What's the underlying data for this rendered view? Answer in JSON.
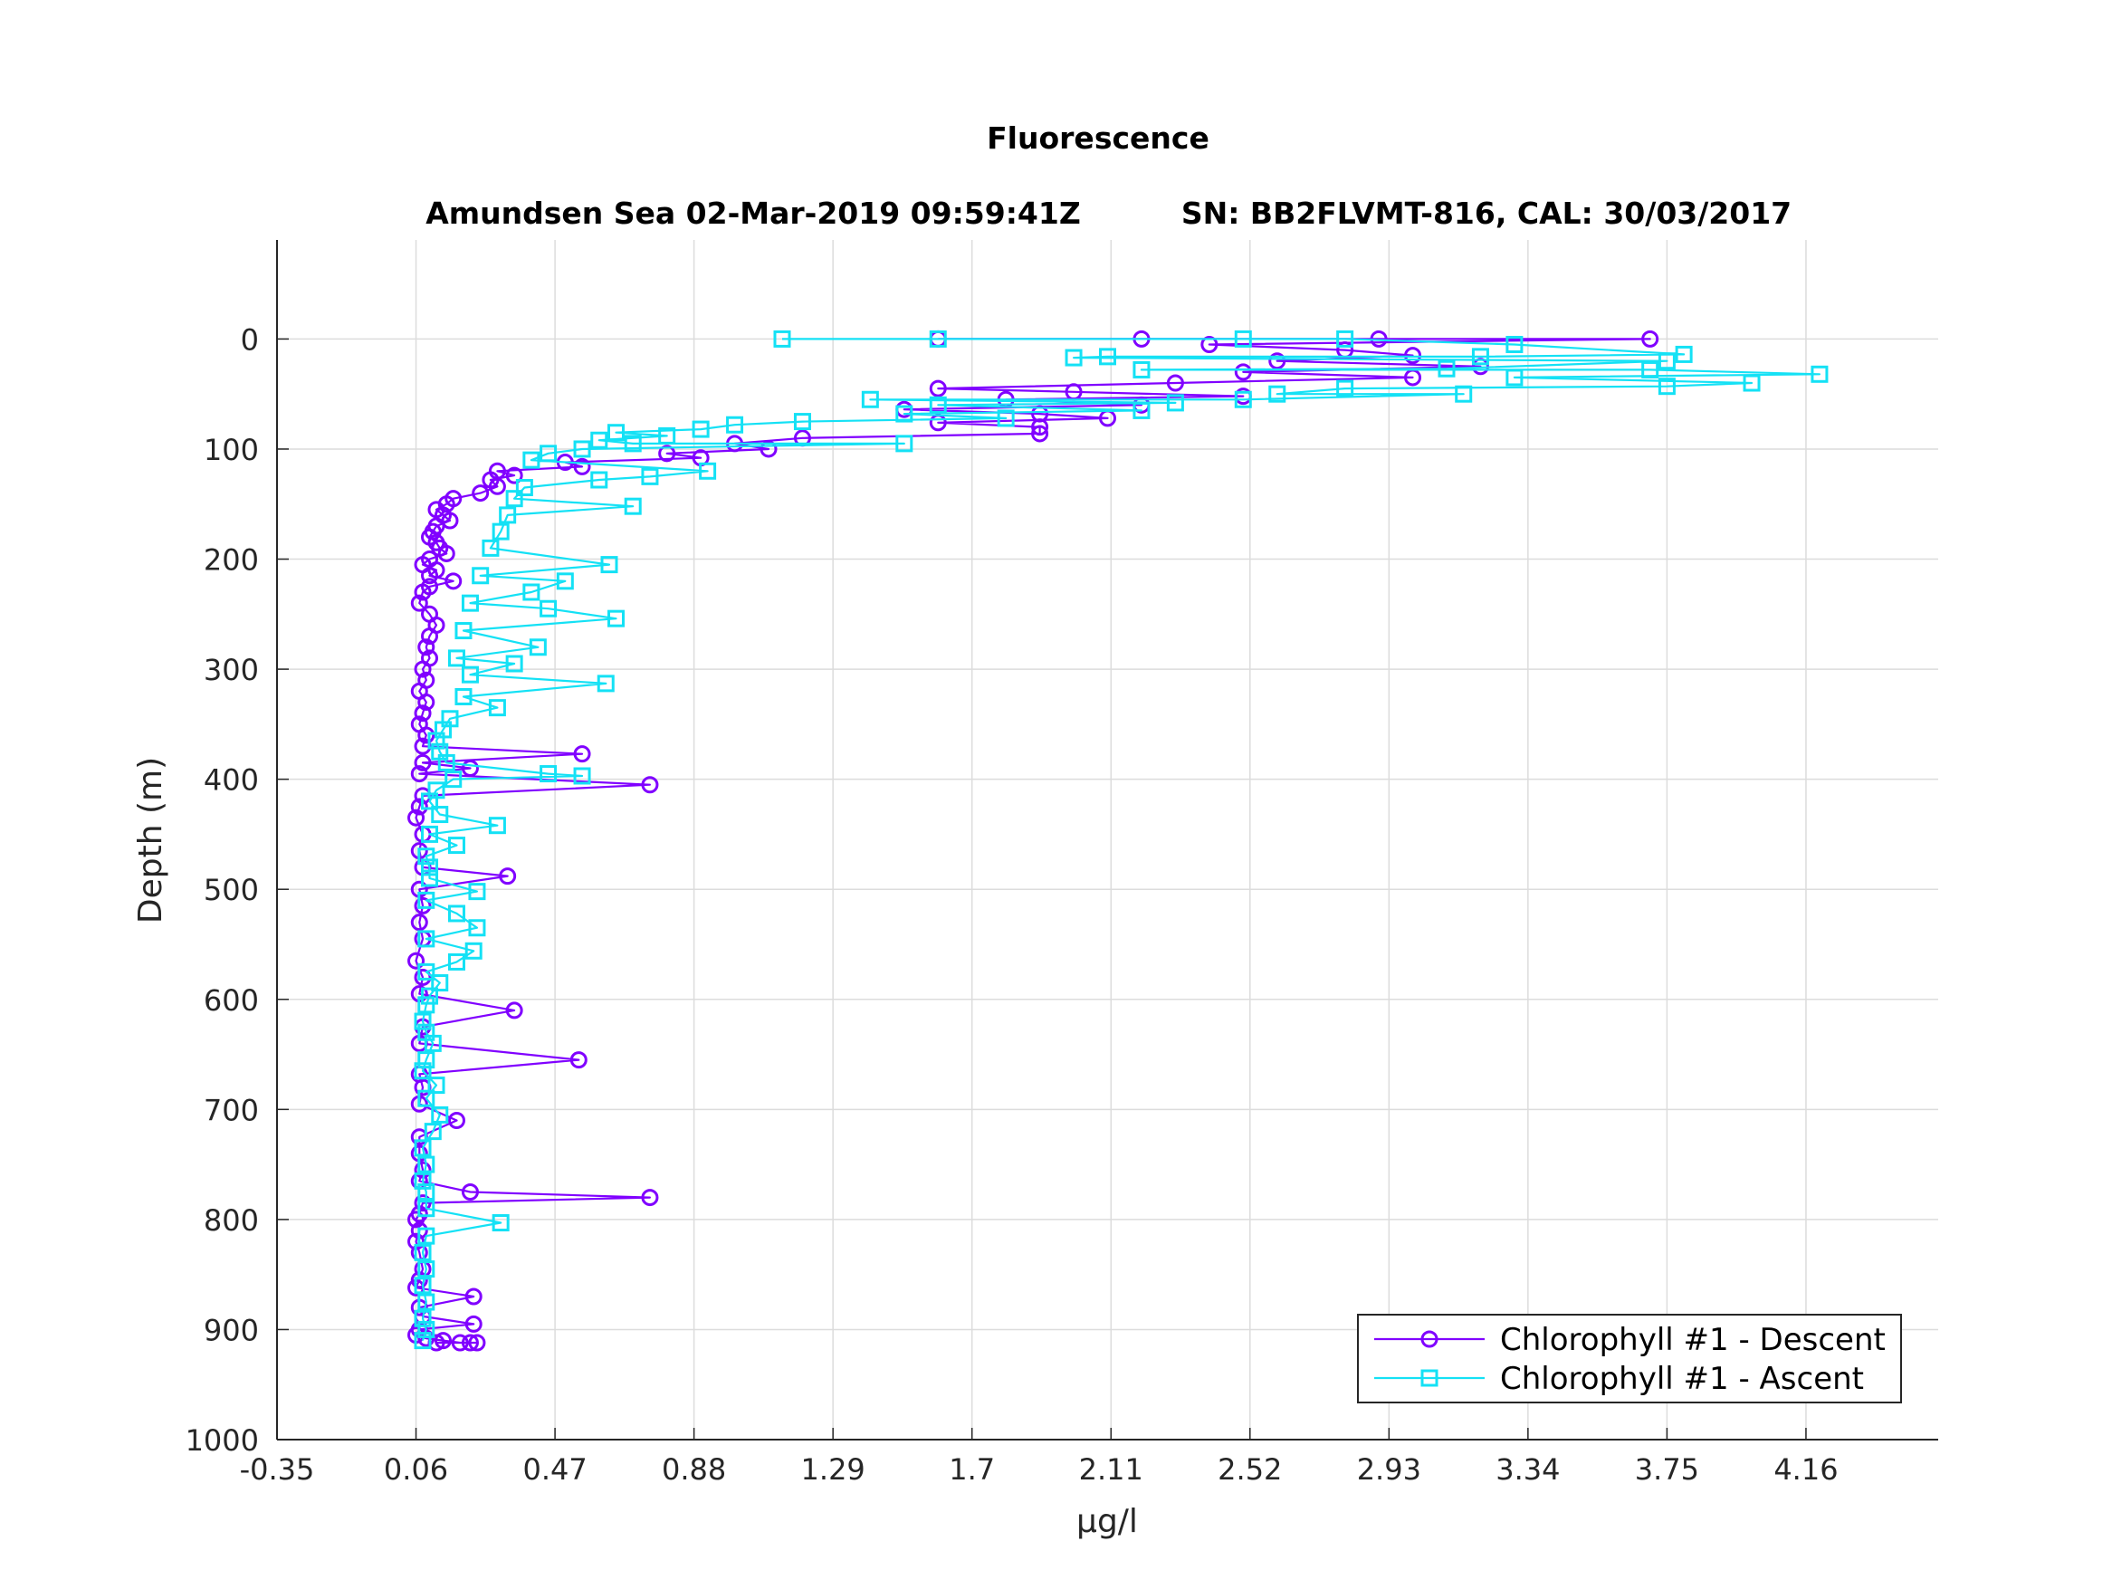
{
  "figure": {
    "title": "Fluorescence",
    "subtitle_left": "Amundsen Sea 02-Mar-2019 09:59:41Z",
    "subtitle_right": "SN: BB2FLVMT-816, CAL: 30/03/2017"
  },
  "chart_data": {
    "type": "line",
    "xlabel_prefix": "μ",
    "xlabel_rest": "g/l",
    "ylabel": "Depth (m)",
    "xlim": [
      -0.35,
      4.55
    ],
    "ylim": [
      1000,
      -90
    ],
    "y_reversed": true,
    "grid": true,
    "legend_position": "bottom-right",
    "x_ticks": [
      "-0.35",
      "0.06",
      "0.47",
      "0.88",
      "1.29",
      "1.7",
      "2.11",
      "2.52",
      "2.93",
      "3.34",
      "3.75",
      "4.16"
    ],
    "y_ticks": [
      "0",
      "100",
      "200",
      "300",
      "400",
      "500",
      "600",
      "700",
      "800",
      "900",
      "1000"
    ],
    "series": [
      {
        "name": "Chlorophyll #1 - Descent",
        "color": "#8000ff",
        "marker": "circle",
        "points": [
          [
            1.6,
            0
          ],
          [
            2.2,
            0
          ],
          [
            2.9,
            0
          ],
          [
            3.7,
            0
          ],
          [
            2.4,
            5
          ],
          [
            2.8,
            10
          ],
          [
            3.0,
            15
          ],
          [
            2.6,
            20
          ],
          [
            3.2,
            25
          ],
          [
            2.5,
            30
          ],
          [
            3.0,
            35
          ],
          [
            2.3,
            40
          ],
          [
            1.6,
            45
          ],
          [
            2.0,
            48
          ],
          [
            2.5,
            52
          ],
          [
            1.8,
            55
          ],
          [
            2.2,
            60
          ],
          [
            1.5,
            64
          ],
          [
            1.9,
            68
          ],
          [
            2.1,
            72
          ],
          [
            1.6,
            76
          ],
          [
            1.9,
            80
          ],
          [
            1.9,
            86
          ],
          [
            1.2,
            90
          ],
          [
            1.0,
            95
          ],
          [
            1.1,
            100
          ],
          [
            0.8,
            104
          ],
          [
            0.9,
            108
          ],
          [
            0.5,
            112
          ],
          [
            0.55,
            116
          ],
          [
            0.3,
            120
          ],
          [
            0.35,
            124
          ],
          [
            0.28,
            128
          ],
          [
            0.3,
            134
          ],
          [
            0.25,
            140
          ],
          [
            0.17,
            145
          ],
          [
            0.15,
            150
          ],
          [
            0.12,
            155
          ],
          [
            0.14,
            160
          ],
          [
            0.16,
            165
          ],
          [
            0.12,
            170
          ],
          [
            0.11,
            175
          ],
          [
            0.1,
            180
          ],
          [
            0.12,
            185
          ],
          [
            0.13,
            190
          ],
          [
            0.15,
            195
          ],
          [
            0.1,
            200
          ],
          [
            0.08,
            205
          ],
          [
            0.12,
            210
          ],
          [
            0.1,
            215
          ],
          [
            0.17,
            220
          ],
          [
            0.1,
            225
          ],
          [
            0.08,
            230
          ],
          [
            0.07,
            240
          ],
          [
            0.1,
            250
          ],
          [
            0.12,
            260
          ],
          [
            0.1,
            270
          ],
          [
            0.09,
            280
          ],
          [
            0.1,
            290
          ],
          [
            0.08,
            300
          ],
          [
            0.09,
            310
          ],
          [
            0.07,
            320
          ],
          [
            0.09,
            330
          ],
          [
            0.08,
            340
          ],
          [
            0.07,
            350
          ],
          [
            0.09,
            360
          ],
          [
            0.08,
            370
          ],
          [
            0.55,
            377
          ],
          [
            0.08,
            385
          ],
          [
            0.22,
            390
          ],
          [
            0.07,
            395
          ],
          [
            0.75,
            405
          ],
          [
            0.08,
            415
          ],
          [
            0.07,
            425
          ],
          [
            0.06,
            435
          ],
          [
            0.08,
            450
          ],
          [
            0.07,
            465
          ],
          [
            0.08,
            480
          ],
          [
            0.33,
            488
          ],
          [
            0.07,
            500
          ],
          [
            0.08,
            515
          ],
          [
            0.07,
            530
          ],
          [
            0.08,
            545
          ],
          [
            0.06,
            565
          ],
          [
            0.08,
            580
          ],
          [
            0.07,
            595
          ],
          [
            0.35,
            610
          ],
          [
            0.08,
            625
          ],
          [
            0.07,
            640
          ],
          [
            0.54,
            655
          ],
          [
            0.07,
            668
          ],
          [
            0.08,
            680
          ],
          [
            0.07,
            695
          ],
          [
            0.18,
            710
          ],
          [
            0.07,
            725
          ],
          [
            0.07,
            740
          ],
          [
            0.08,
            755
          ],
          [
            0.07,
            765
          ],
          [
            0.22,
            775
          ],
          [
            0.75,
            780
          ],
          [
            0.08,
            785
          ],
          [
            0.07,
            795
          ],
          [
            0.06,
            800
          ],
          [
            0.07,
            810
          ],
          [
            0.06,
            820
          ],
          [
            0.07,
            830
          ],
          [
            0.08,
            845
          ],
          [
            0.07,
            855
          ],
          [
            0.06,
            862
          ],
          [
            0.23,
            870
          ],
          [
            0.07,
            880
          ],
          [
            0.08,
            888
          ],
          [
            0.23,
            895
          ],
          [
            0.07,
            900
          ],
          [
            0.06,
            905
          ],
          [
            0.09,
            908
          ],
          [
            0.14,
            910
          ],
          [
            0.19,
            912
          ],
          [
            0.22,
            912
          ],
          [
            0.24,
            912
          ],
          [
            0.12,
            912
          ]
        ]
      },
      {
        "name": "Chlorophyll #1 - Ascent",
        "color": "#14e1f5",
        "marker": "square",
        "points": [
          [
            1.14,
            0
          ],
          [
            1.6,
            0
          ],
          [
            2.5,
            0
          ],
          [
            2.8,
            0
          ],
          [
            3.3,
            5
          ],
          [
            2.0,
            17
          ],
          [
            3.2,
            16
          ],
          [
            3.8,
            14
          ],
          [
            2.1,
            16
          ],
          [
            3.75,
            20
          ],
          [
            2.2,
            28
          ],
          [
            3.1,
            27
          ],
          [
            3.7,
            28
          ],
          [
            4.2,
            32
          ],
          [
            3.3,
            35
          ],
          [
            4.0,
            40
          ],
          [
            3.75,
            43
          ],
          [
            2.8,
            45
          ],
          [
            2.6,
            50
          ],
          [
            3.15,
            50
          ],
          [
            2.5,
            55
          ],
          [
            2.3,
            58
          ],
          [
            1.4,
            55
          ],
          [
            1.6,
            60
          ],
          [
            2.2,
            65
          ],
          [
            1.5,
            68
          ],
          [
            1.8,
            72
          ],
          [
            1.2,
            75
          ],
          [
            1.0,
            78
          ],
          [
            0.9,
            82
          ],
          [
            0.65,
            85
          ],
          [
            0.8,
            88
          ],
          [
            0.6,
            92
          ],
          [
            0.7,
            95
          ],
          [
            1.5,
            95
          ],
          [
            0.55,
            100
          ],
          [
            0.45,
            104
          ],
          [
            0.92,
            120
          ],
          [
            0.75,
            125
          ],
          [
            0.4,
            110
          ],
          [
            0.6,
            128
          ],
          [
            0.38,
            135
          ],
          [
            0.7,
            152
          ],
          [
            0.35,
            145
          ],
          [
            0.33,
            160
          ],
          [
            0.31,
            175
          ],
          [
            0.28,
            190
          ],
          [
            0.63,
            205
          ],
          [
            0.25,
            215
          ],
          [
            0.5,
            220
          ],
          [
            0.4,
            230
          ],
          [
            0.22,
            240
          ],
          [
            0.45,
            245
          ],
          [
            0.65,
            254
          ],
          [
            0.2,
            265
          ],
          [
            0.42,
            280
          ],
          [
            0.18,
            290
          ],
          [
            0.35,
            295
          ],
          [
            0.22,
            305
          ],
          [
            0.62,
            313
          ],
          [
            0.2,
            325
          ],
          [
            0.3,
            335
          ],
          [
            0.16,
            345
          ],
          [
            0.14,
            355
          ],
          [
            0.12,
            365
          ],
          [
            0.13,
            375
          ],
          [
            0.15,
            385
          ],
          [
            0.45,
            395
          ],
          [
            0.55,
            397
          ],
          [
            0.17,
            400
          ],
          [
            0.12,
            410
          ],
          [
            0.1,
            420
          ],
          [
            0.13,
            432
          ],
          [
            0.3,
            442
          ],
          [
            0.1,
            450
          ],
          [
            0.18,
            460
          ],
          [
            0.09,
            470
          ],
          [
            0.1,
            480
          ],
          [
            0.1,
            490
          ],
          [
            0.24,
            502
          ],
          [
            0.09,
            510
          ],
          [
            0.18,
            522
          ],
          [
            0.24,
            535
          ],
          [
            0.09,
            545
          ],
          [
            0.23,
            556
          ],
          [
            0.18,
            566
          ],
          [
            0.09,
            575
          ],
          [
            0.13,
            585
          ],
          [
            0.1,
            597
          ],
          [
            0.09,
            605
          ],
          [
            0.08,
            620
          ],
          [
            0.09,
            630
          ],
          [
            0.11,
            640
          ],
          [
            0.09,
            655
          ],
          [
            0.08,
            665
          ],
          [
            0.12,
            678
          ],
          [
            0.09,
            690
          ],
          [
            0.13,
            705
          ],
          [
            0.11,
            720
          ],
          [
            0.08,
            735
          ],
          [
            0.09,
            750
          ],
          [
            0.08,
            765
          ],
          [
            0.09,
            775
          ],
          [
            0.09,
            790
          ],
          [
            0.31,
            803
          ],
          [
            0.09,
            815
          ],
          [
            0.08,
            830
          ],
          [
            0.09,
            845
          ],
          [
            0.08,
            860
          ],
          [
            0.09,
            875
          ],
          [
            0.08,
            890
          ],
          [
            0.09,
            900
          ],
          [
            0.08,
            910
          ]
        ]
      }
    ]
  }
}
